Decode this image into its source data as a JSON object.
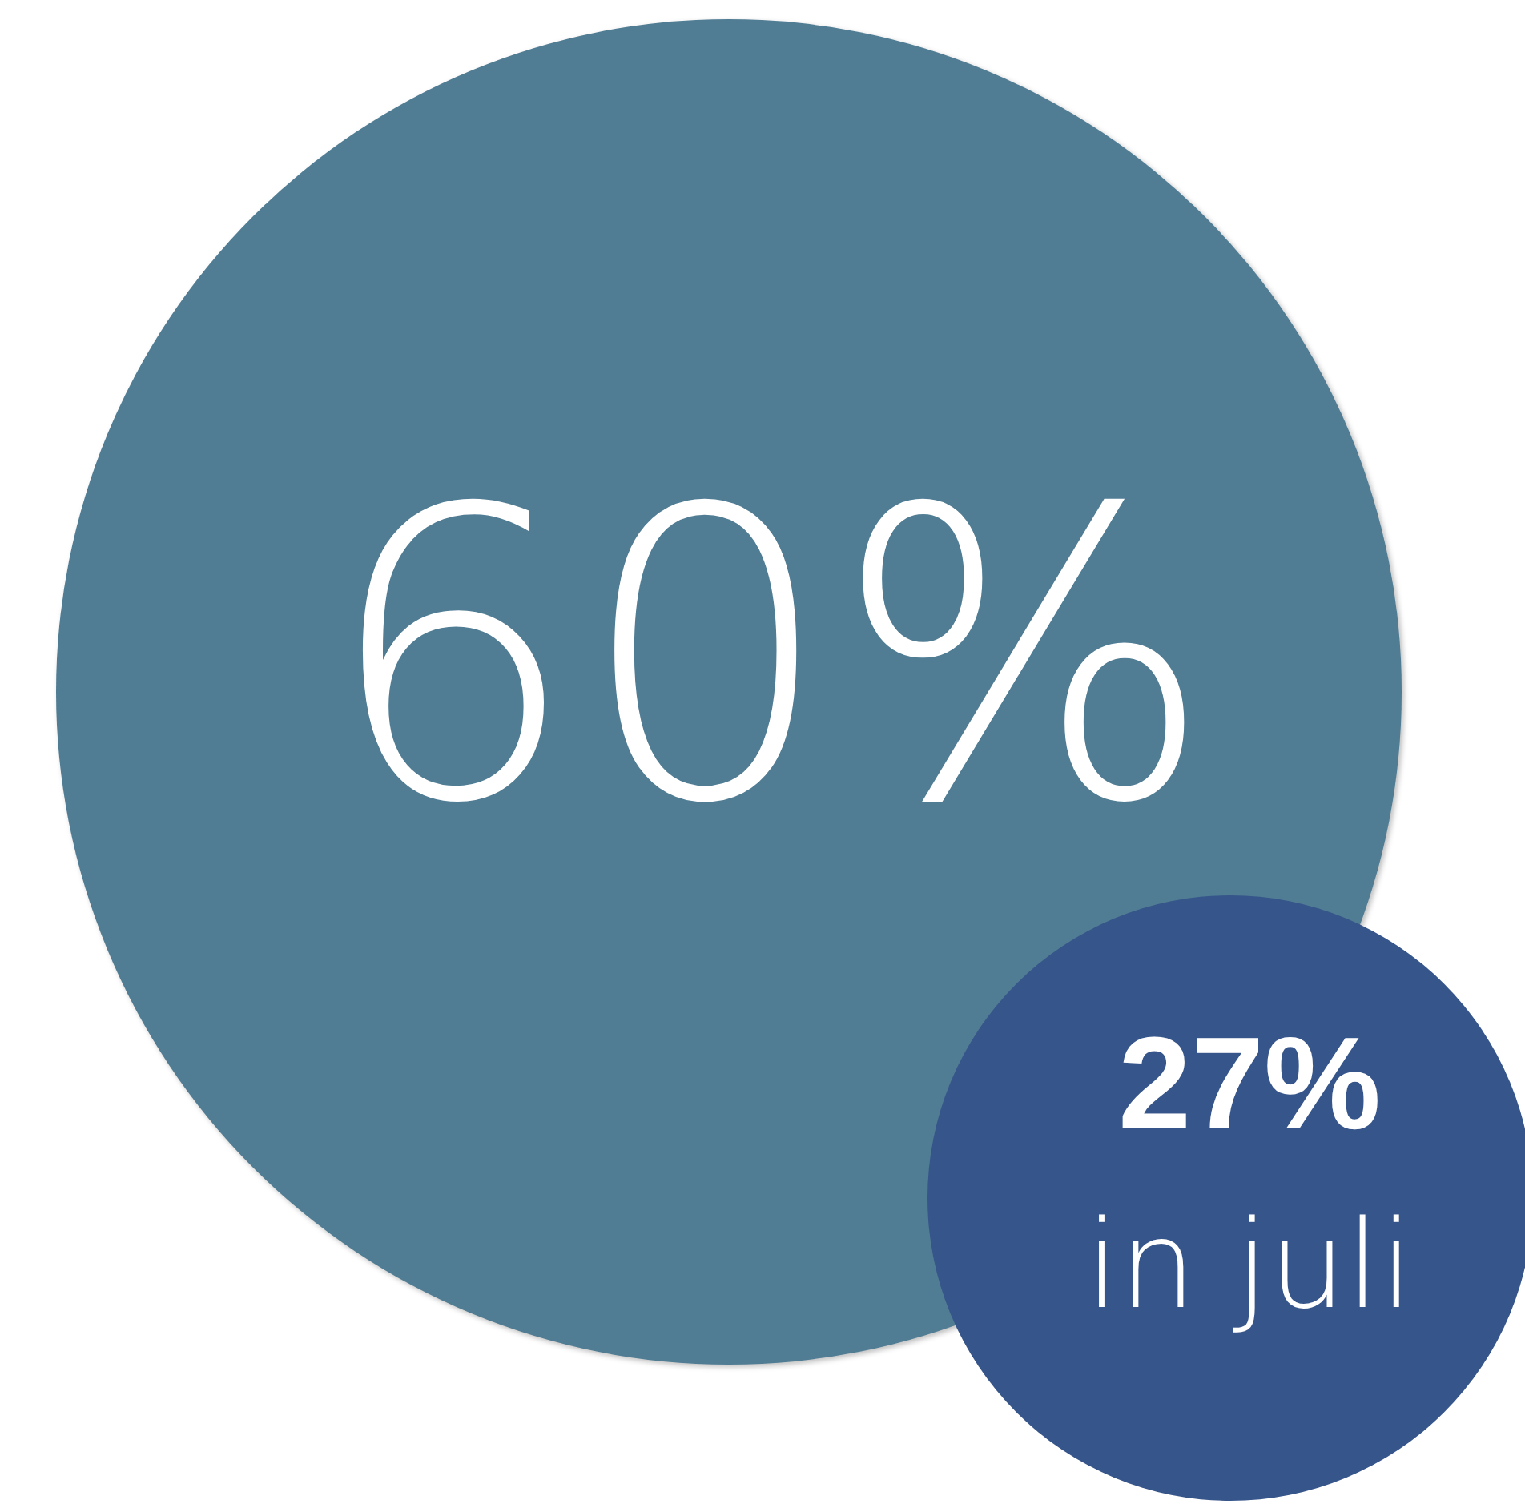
{
  "chart_data": {
    "type": "other",
    "categories": [
      null,
      "in juli"
    ],
    "values": [
      60,
      27
    ],
    "value_labels": [
      "60%",
      "27%"
    ],
    "colors": [
      "#507d94",
      "#36558a"
    ]
  }
}
